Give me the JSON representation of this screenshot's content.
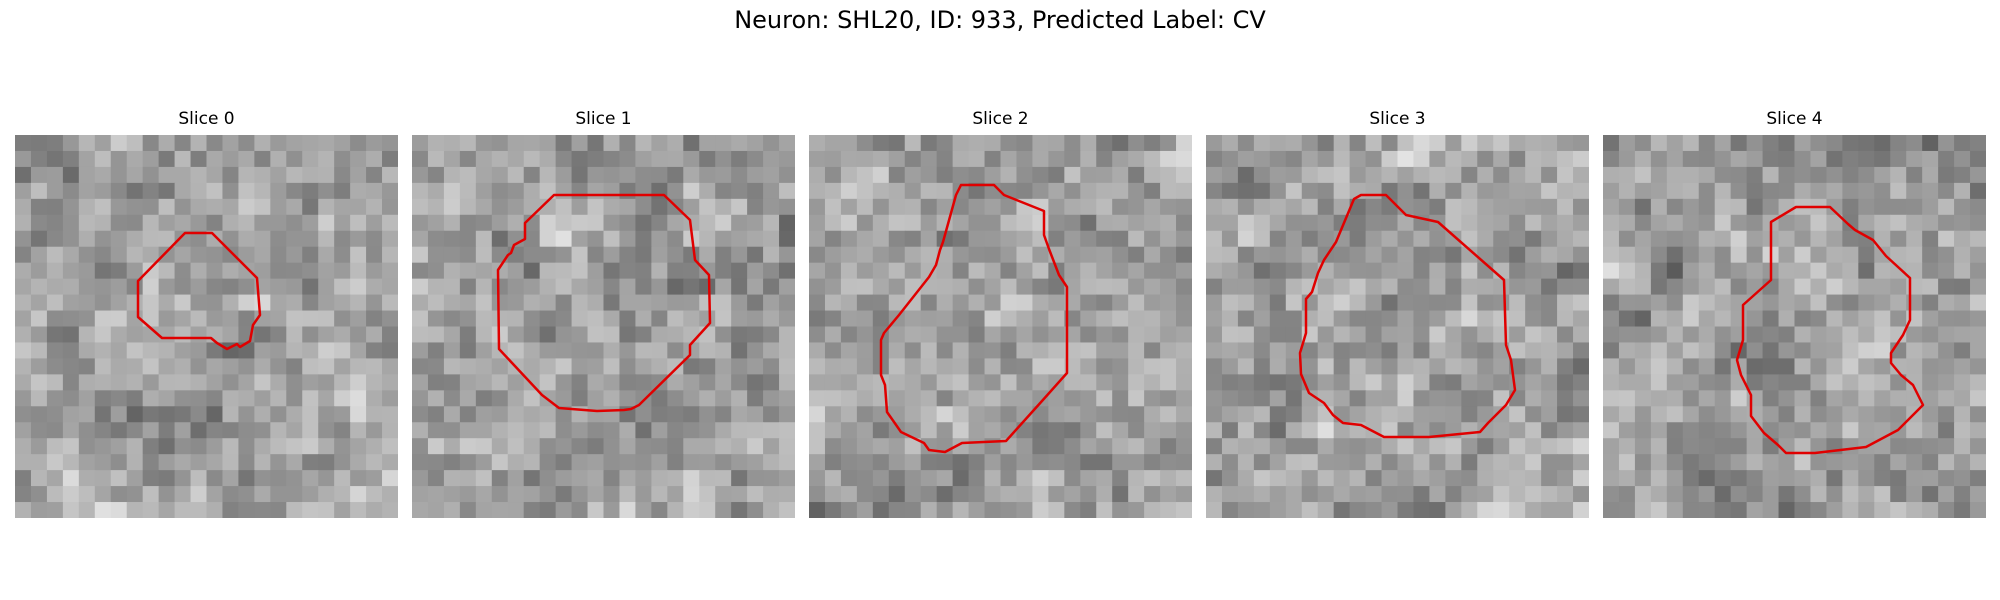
{
  "figure": {
    "title": "Neuron: SHL20, ID: 933, Predicted Label: CV"
  },
  "colors": {
    "contour": "#e00000"
  },
  "panels": [
    {
      "title": "Slice 0",
      "seed": 11
    },
    {
      "title": "Slice 1",
      "seed": 23
    },
    {
      "title": "Slice 2",
      "seed": 37
    },
    {
      "title": "Slice 3",
      "seed": 41
    },
    {
      "title": "Slice 4",
      "seed": 53
    }
  ]
}
